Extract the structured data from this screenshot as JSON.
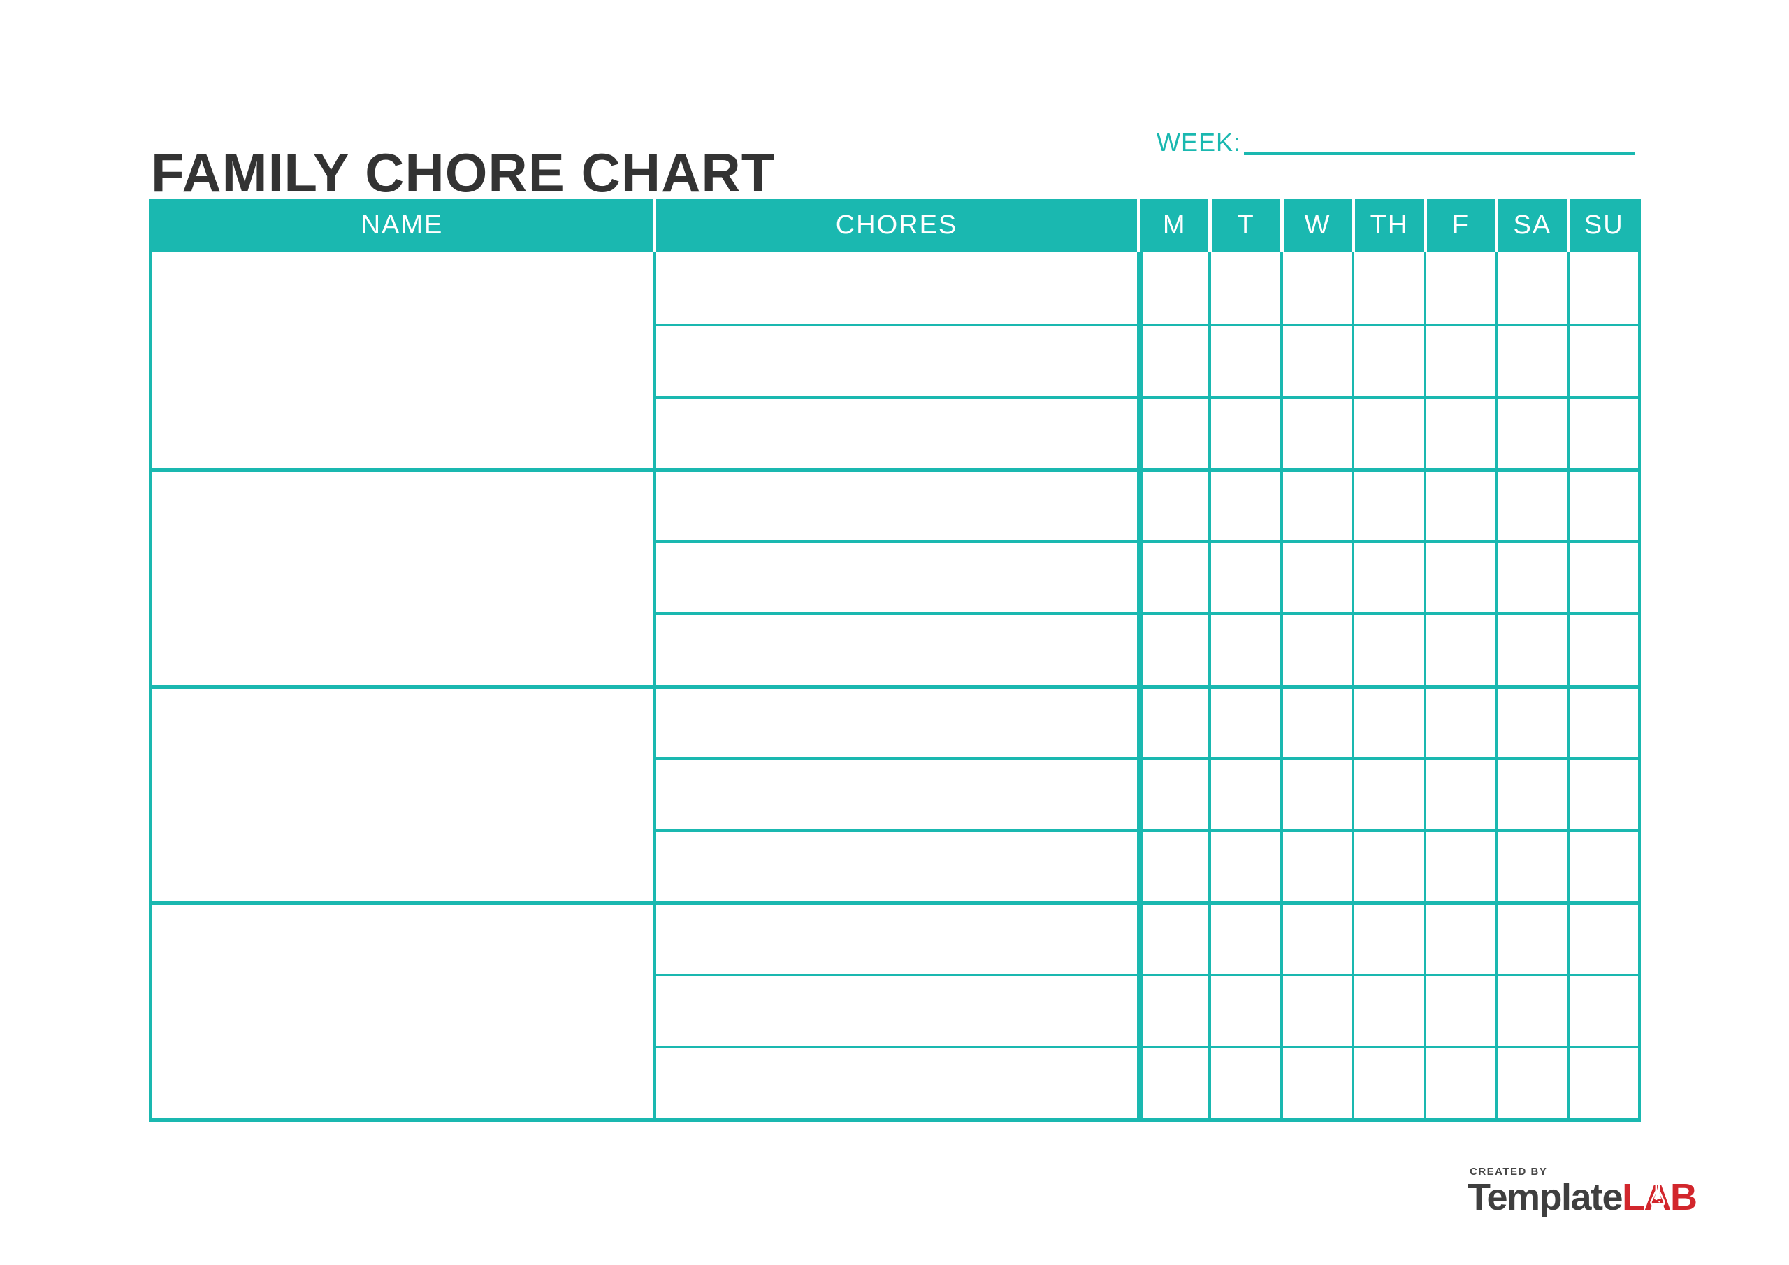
{
  "page": {
    "title": "FAMILY CHORE CHART"
  },
  "week": {
    "label": "WEEK:"
  },
  "table": {
    "columns": {
      "name": "NAME",
      "chores": "CHORES"
    },
    "day_headers": [
      "M",
      "T",
      "W",
      "TH",
      "F",
      "SA",
      "SU"
    ],
    "groups": 4,
    "chore_rows_per_group": 3
  },
  "footer": {
    "created_by": "CREATED BY",
    "brand": {
      "primary": "Template",
      "accent": "LAB"
    }
  },
  "colors": {
    "teal": "#1ab8b0",
    "title_text": "#333333",
    "header_text": "#ffffff",
    "brand_dark": "#3f3f3f",
    "brand_red": "#d2262c"
  }
}
